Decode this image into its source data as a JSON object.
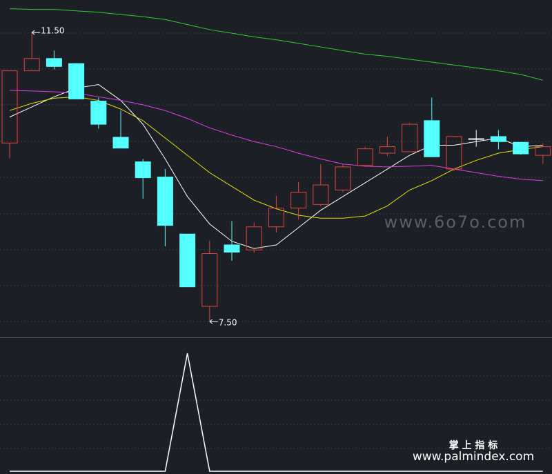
{
  "chart_data": [
    {
      "type": "candlestick",
      "open": [
        9.97,
        10.97,
        11.14,
        11.07,
        10.55,
        10.05,
        9.71,
        9.5,
        8.71,
        7.71,
        8.56,
        8.49,
        8.81,
        9.07,
        9.12,
        9.32,
        9.66,
        9.83,
        9.85,
        10.28,
        9.61,
        10.03,
        10.06,
        9.98,
        9.8
      ],
      "close": [
        10.97,
        11.14,
        11.03,
        10.58,
        10.23,
        9.9,
        9.49,
        8.83,
        7.98,
        8.44,
        8.46,
        8.81,
        9.07,
        9.29,
        9.39,
        9.64,
        9.89,
        9.92,
        10.23,
        9.78,
        10.06,
        10.03,
        9.99,
        9.82,
        9.92
      ],
      "high": [
        10.97,
        11.5,
        11.25,
        11.07,
        10.6,
        10.42,
        9.75,
        9.61,
        8.71,
        8.62,
        8.89,
        8.87,
        9.24,
        9.43,
        9.68,
        9.68,
        9.92,
        10.06,
        10.25,
        10.6,
        10.07,
        10.15,
        10.15,
        9.98,
        9.97
      ],
      "low": [
        9.76,
        10.97,
        10.99,
        10.58,
        10.17,
        9.9,
        9.2,
        8.54,
        7.98,
        7.5,
        8.34,
        8.45,
        8.73,
        8.91,
        9.1,
        9.29,
        9.64,
        9.79,
        9.85,
        9.78,
        9.58,
        9.92,
        9.88,
        9.81,
        9.68
      ],
      "up_color": "#e0443c",
      "down_color": "#54ffff",
      "flat_color": "#ffffff",
      "series": [
        {
          "color": "#ffffff",
          "values": [
            10.33,
            10.47,
            10.61,
            10.73,
            10.78,
            10.56,
            10.23,
            9.75,
            9.23,
            8.85,
            8.61,
            8.51,
            8.56,
            8.8,
            9.04,
            9.23,
            9.42,
            9.61,
            9.8,
            9.94,
            9.94,
            9.99,
            10.04,
            9.92,
            9.94
          ]
        },
        {
          "color": "#e6e600",
          "values": [
            10.42,
            10.52,
            10.59,
            10.61,
            10.56,
            10.44,
            10.28,
            10.04,
            9.8,
            9.56,
            9.37,
            9.18,
            9.06,
            8.97,
            8.93,
            8.93,
            8.96,
            9.1,
            9.32,
            9.45,
            9.61,
            9.73,
            9.83,
            9.88,
            9.92
          ]
        },
        {
          "color": "#e040e0",
          "values": [
            10.7,
            10.69,
            10.68,
            10.66,
            10.61,
            10.56,
            10.5,
            10.42,
            10.31,
            10.18,
            10.08,
            9.99,
            9.92,
            9.83,
            9.75,
            9.68,
            9.65,
            9.64,
            9.65,
            9.66,
            9.61,
            9.56,
            9.51,
            9.47,
            9.45
          ]
        },
        {
          "color": "#33cc33",
          "values": [
            11.83,
            11.82,
            11.82,
            11.8,
            11.78,
            11.75,
            11.72,
            11.68,
            11.61,
            11.54,
            11.49,
            11.44,
            11.4,
            11.35,
            11.3,
            11.25,
            11.2,
            11.17,
            11.13,
            11.09,
            11.05,
            11.01,
            10.97,
            10.92,
            10.84
          ]
        }
      ],
      "high_label": {
        "value": 11.5,
        "label": "11.50"
      },
      "low_label": {
        "value": 7.5,
        "label": "7.50"
      },
      "ylim": [
        7.28,
        11.95
      ]
    },
    {
      "type": "line",
      "color": "#ffffff",
      "values": [
        0,
        0,
        0,
        0,
        0,
        0,
        0,
        0,
        1,
        0,
        0,
        0,
        0,
        0,
        0,
        0,
        0,
        0,
        0,
        0,
        0,
        0,
        0,
        0,
        0
      ],
      "ylim": [
        0,
        1
      ]
    }
  ],
  "watermarks": {
    "site": "www.6o7o.com",
    "brand": "掌 上 指 标",
    "url": "www.palmindex.com"
  }
}
